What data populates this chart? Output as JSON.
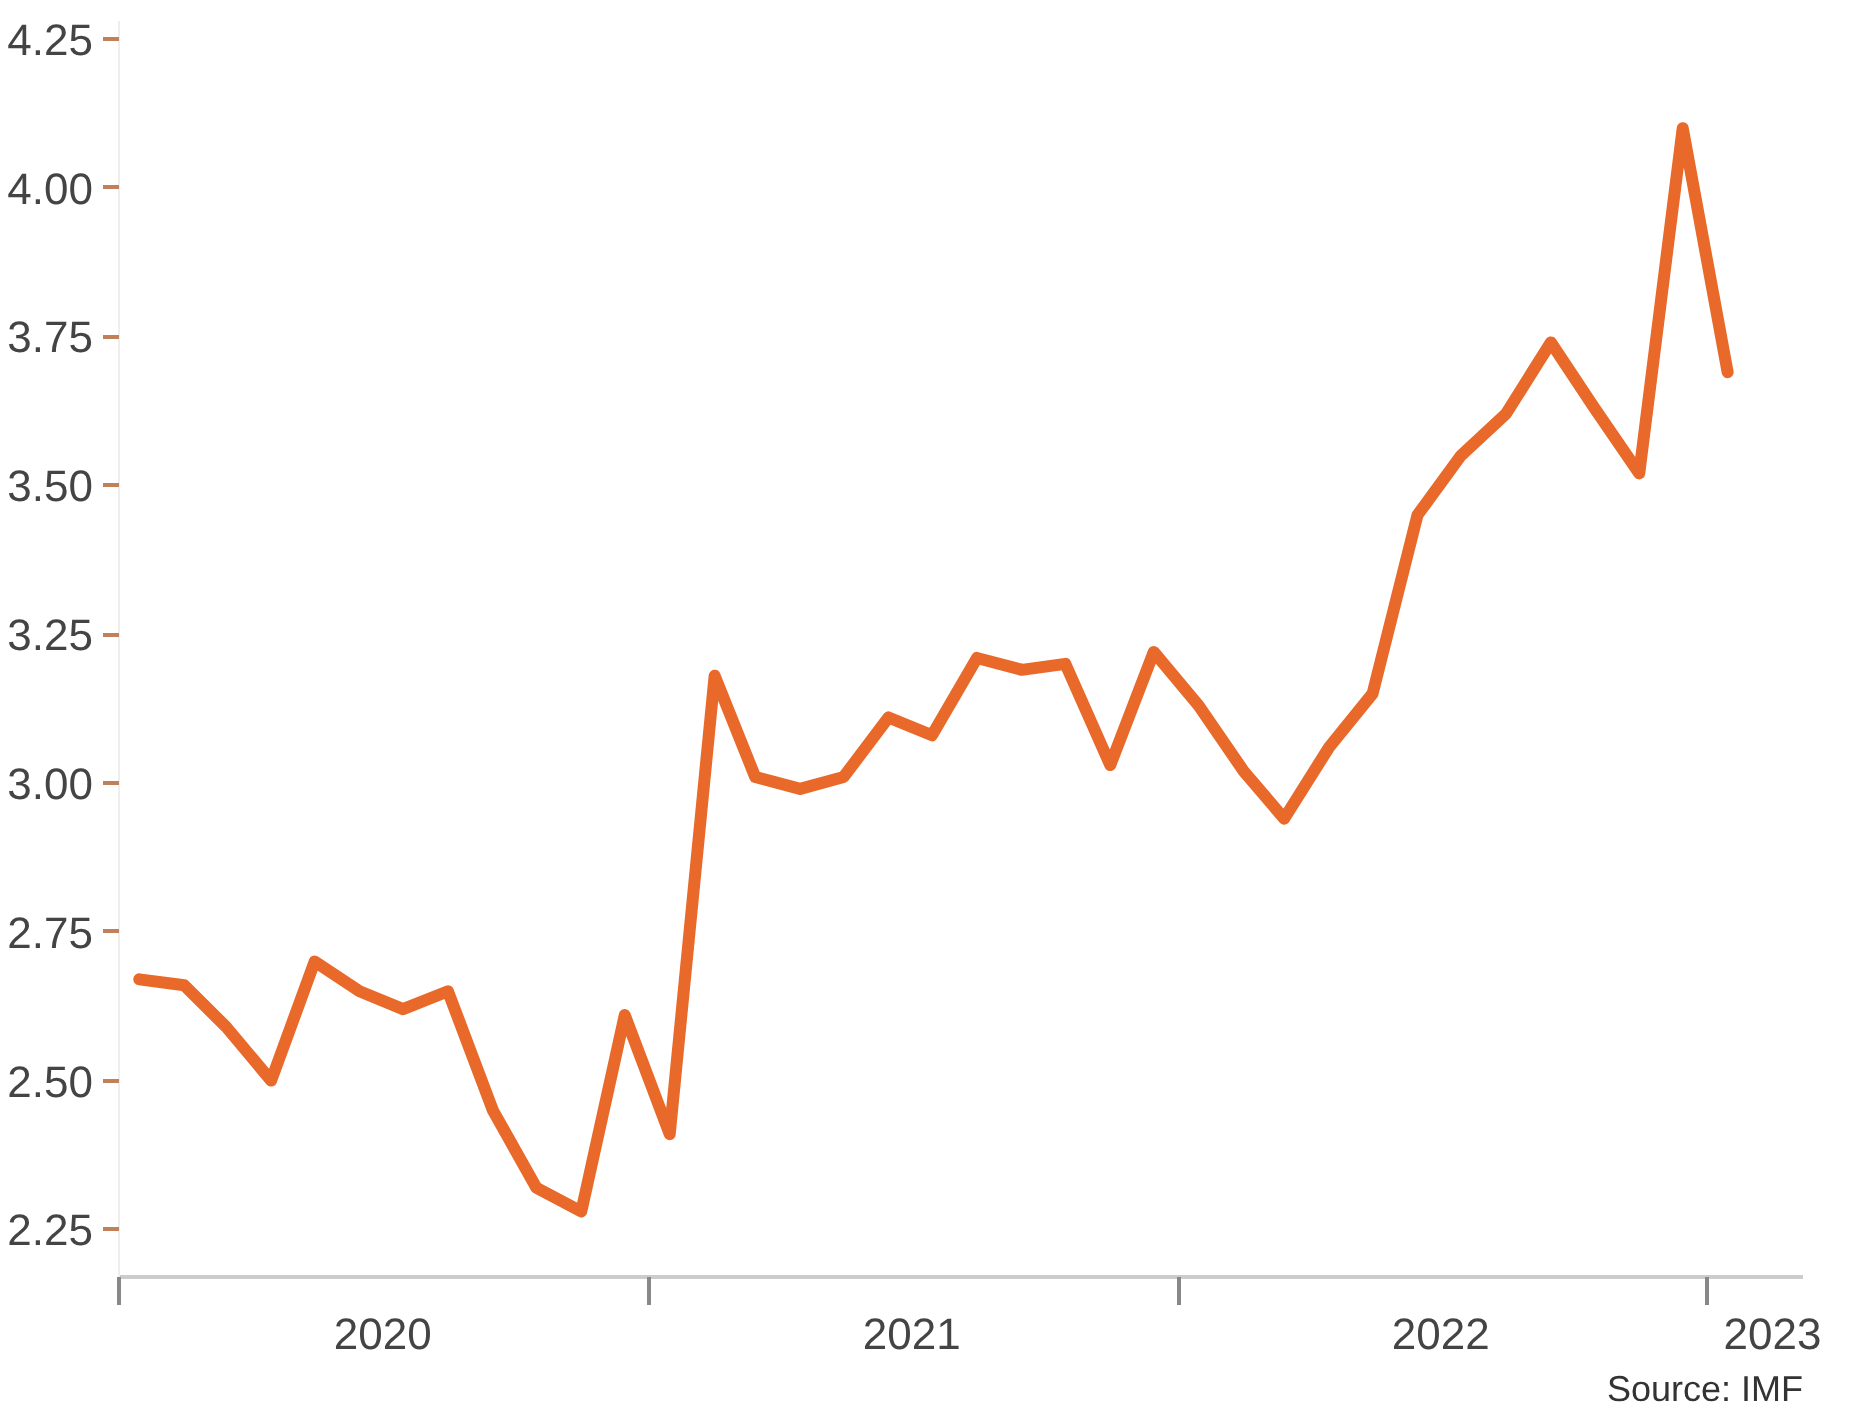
{
  "chart_data": {
    "type": "line",
    "x": [
      "2020-01-15",
      "2020-02-15",
      "2020-03-15",
      "2020-04-15",
      "2020-05-15",
      "2020-06-15",
      "2020-07-15",
      "2020-08-15",
      "2020-09-15",
      "2020-10-15",
      "2020-11-15",
      "2020-12-15",
      "2021-01-15",
      "2021-02-15",
      "2021-03-15",
      "2021-04-15",
      "2021-05-15",
      "2021-06-15",
      "2021-07-15",
      "2021-08-15",
      "2021-09-15",
      "2021-10-15",
      "2021-11-15",
      "2021-12-15",
      "2022-01-15",
      "2022-02-15",
      "2022-03-15",
      "2022-04-15",
      "2022-05-15",
      "2022-06-15",
      "2022-07-15",
      "2022-08-15",
      "2022-09-15",
      "2022-10-15",
      "2022-11-15",
      "2022-12-15",
      "2023-01-15"
    ],
    "series": [
      {
        "color": "#e8692a",
        "values": [
          2.67,
          2.66,
          2.59,
          2.5,
          2.7,
          2.65,
          2.62,
          2.65,
          2.45,
          2.32,
          2.28,
          2.61,
          2.41,
          3.18,
          3.01,
          2.99,
          3.01,
          3.11,
          3.08,
          3.21,
          3.19,
          3.2,
          3.03,
          3.22,
          3.13,
          3.02,
          2.94,
          3.06,
          3.15,
          3.45,
          3.55,
          3.62,
          3.74,
          3.63,
          3.52,
          4.1,
          3.69
        ]
      }
    ],
    "xlim": [
      "2020-01-01",
      "2023-03-08"
    ],
    "xticks": [
      {
        "value": "2020-01-01",
        "label": null
      },
      {
        "value": "2020-07-01",
        "label": "2020"
      },
      {
        "value": "2021-01-01",
        "label": null
      },
      {
        "value": "2021-07-01",
        "label": "2021"
      },
      {
        "value": "2022-01-01",
        "label": null
      },
      {
        "value": "2022-07-01",
        "label": "2022"
      },
      {
        "value": "2023-01-01",
        "label": null
      },
      {
        "value": "2023-02-15",
        "label": "2023"
      }
    ],
    "ylim": [
      2.17,
      4.28
    ],
    "yticks": [
      {
        "value": 2.25,
        "label": "2.25"
      },
      {
        "value": 2.5,
        "label": "2.50"
      },
      {
        "value": 2.75,
        "label": "2.75"
      },
      {
        "value": 3.0,
        "label": "3.00"
      },
      {
        "value": 3.25,
        "label": "3.25"
      },
      {
        "value": 3.5,
        "label": "3.50"
      },
      {
        "value": 3.75,
        "label": "3.75"
      },
      {
        "value": 4.0,
        "label": "4.00"
      },
      {
        "value": 4.25,
        "label": "4.25"
      }
    ],
    "grid": false,
    "marker": "none",
    "line_style": "solid",
    "annotations": [
      "Source: IMF"
    ]
  }
}
